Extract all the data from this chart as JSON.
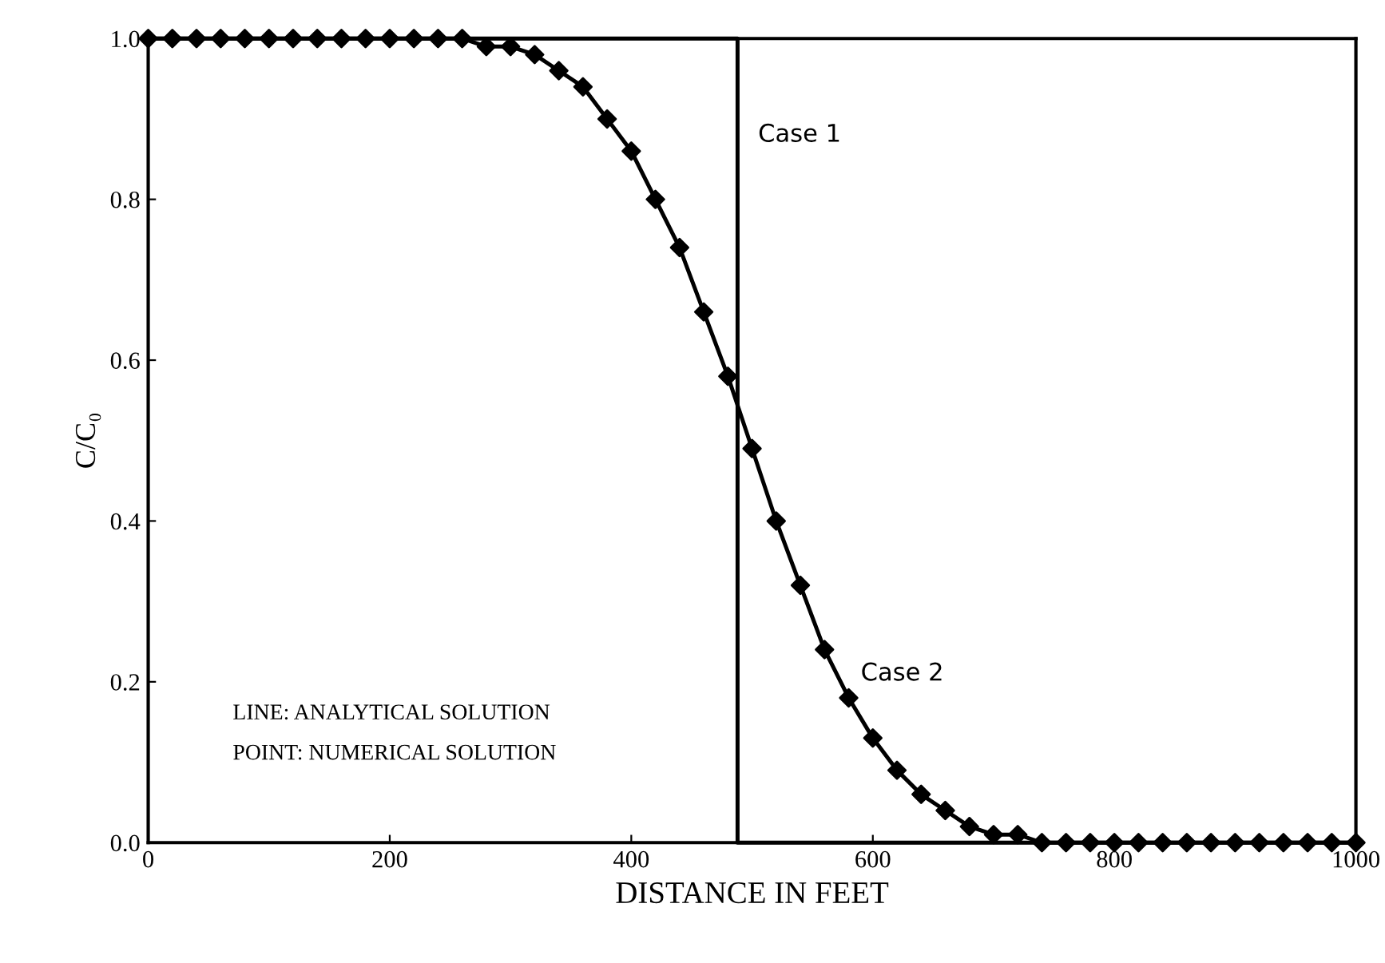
{
  "chart_data": {
    "type": "line",
    "xlabel": "DISTANCE IN FEET",
    "ylabel": "C/C₀",
    "xlim": [
      0,
      1000
    ],
    "ylim": [
      0,
      1.0
    ],
    "xticks": [
      0,
      200,
      400,
      600,
      800,
      1000
    ],
    "yticks": [
      {
        "value": 0,
        "label": "0.0"
      },
      {
        "value": 0.2,
        "label": "0.2"
      },
      {
        "value": 0.4,
        "label": "0.4"
      },
      {
        "value": 0.6,
        "label": "0.6"
      },
      {
        "value": 0.8,
        "label": "0.8"
      },
      {
        "value": 1.0,
        "label": "1.0"
      }
    ],
    "grid": false,
    "series": [
      {
        "name": "Case 1",
        "type": "line",
        "color": "#000000",
        "line_style": "solid",
        "x": [
          0,
          488,
          488,
          1000
        ],
        "values": [
          1,
          1,
          0,
          0
        ]
      },
      {
        "name": "Case 2",
        "color": "#000000",
        "line_style": "solid",
        "x": [
          0,
          100,
          200,
          260,
          280,
          300,
          320,
          340,
          360,
          380,
          400,
          420,
          440,
          460,
          480,
          500,
          520,
          540,
          560,
          580,
          600,
          620,
          640,
          660,
          680,
          700,
          720,
          740,
          760,
          800,
          900,
          1000
        ],
        "values": [
          1,
          1,
          1,
          1.0,
          0.99,
          0.99,
          0.98,
          0.96,
          0.94,
          0.9,
          0.86,
          0.8,
          0.74,
          0.66,
          0.58,
          0.49,
          0.4,
          0.32,
          0.24,
          0.18,
          0.13,
          0.09,
          0.06,
          0.04,
          0.02,
          0.01,
          0.01,
          0,
          0,
          0,
          0,
          0
        ]
      },
      {
        "type": "scatter",
        "color": "#000000",
        "marker": "diamond",
        "x": [
          0,
          20,
          40,
          60,
          80,
          100,
          120,
          140,
          160,
          180,
          200,
          220,
          240,
          260,
          280,
          300,
          320,
          340,
          360,
          380,
          400,
          420,
          440,
          460,
          480,
          500,
          520,
          540,
          560,
          580,
          600,
          620,
          640,
          660,
          680,
          700,
          720,
          740,
          760,
          780,
          800,
          820,
          840,
          860,
          880,
          900,
          920,
          940,
          960,
          980,
          1000
        ],
        "values": [
          1,
          1,
          1,
          1,
          1,
          1,
          1,
          1,
          1,
          1,
          1,
          1,
          1,
          1.0,
          0.99,
          0.99,
          0.98,
          0.96,
          0.94,
          0.9,
          0.86,
          0.8,
          0.74,
          0.66,
          0.58,
          0.49,
          0.4,
          0.32,
          0.24,
          0.18,
          0.13,
          0.09,
          0.06,
          0.04,
          0.02,
          0.01,
          0.01,
          0,
          0,
          0,
          0,
          0,
          0,
          0,
          0,
          0,
          0,
          0,
          0,
          0,
          0
        ]
      }
    ],
    "annotations": [
      "LINE: ANALYTICAL SOLUTION",
      "POINT: NUMERICAL SOLUTION"
    ]
  }
}
